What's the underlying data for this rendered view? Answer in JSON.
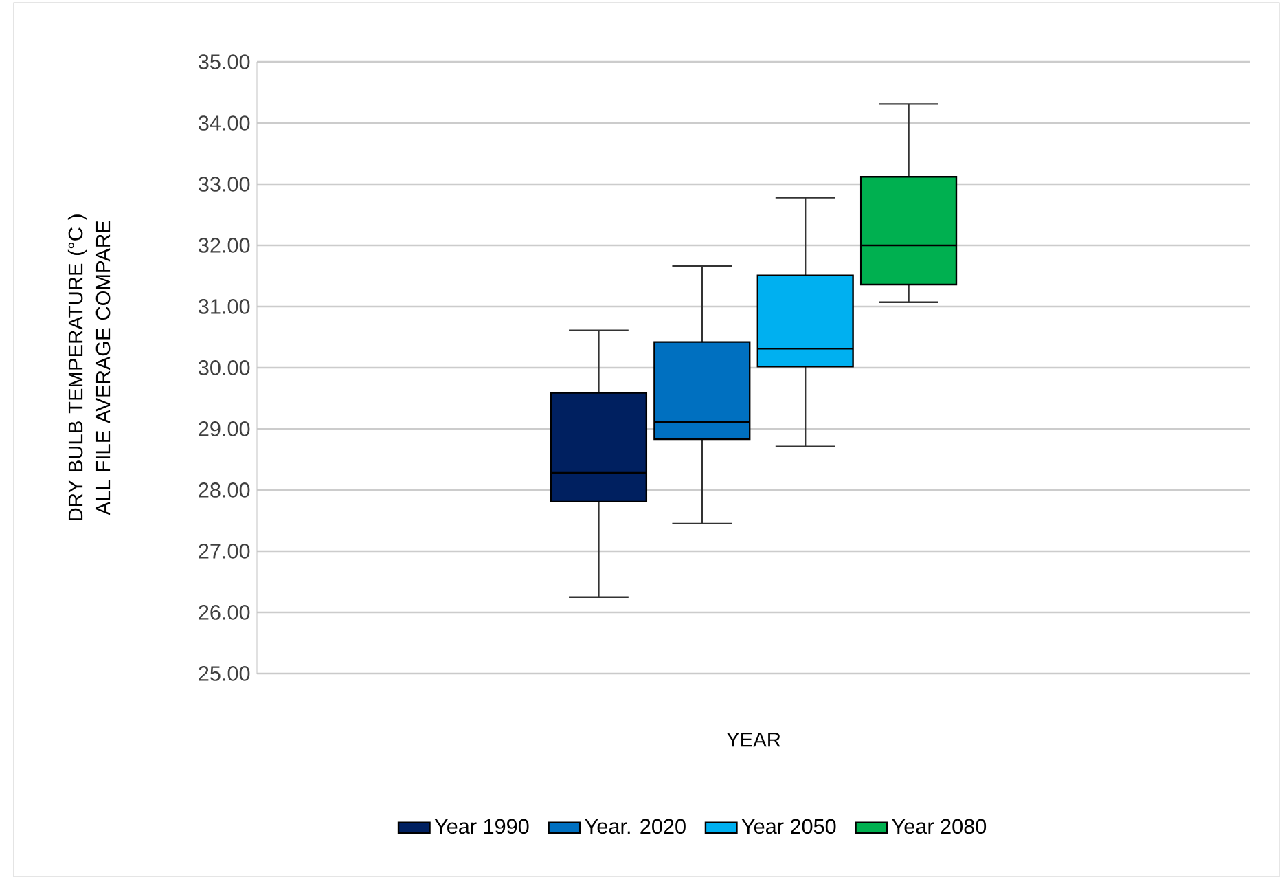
{
  "chart_data": {
    "type": "box",
    "xlabel": "YEAR",
    "ylabel": "DRY BULB TEMPERATURE (°C ) ALL FILE AVERAGE COMPARE",
    "categories": [
      null
    ],
    "series": [
      {
        "name": "Year 1990",
        "color": "#002060",
        "boxes": [
          {
            "low": 26.25,
            "q1": 27.81,
            "median": 28.28,
            "q3": 29.59,
            "high": 30.61
          }
        ]
      },
      {
        "name": "Year. 2020",
        "color": "#0070c0",
        "boxes": [
          {
            "low": 27.45,
            "q1": 28.83,
            "median": 29.11,
            "q3": 30.42,
            "high": 31.66
          }
        ]
      },
      {
        "name": "Year 2050",
        "color": "#00b0f0",
        "boxes": [
          {
            "low": 28.71,
            "q1": 30.02,
            "median": 30.31,
            "q3": 31.51,
            "high": 32.78
          }
        ]
      },
      {
        "name": "Year 2080",
        "color": "#00b050",
        "boxes": [
          {
            "low": 31.07,
            "q1": 31.36,
            "median": 32.0,
            "q3": 33.12,
            "high": 34.31
          }
        ]
      }
    ],
    "ylim": [
      25,
      35
    ],
    "yticks": [
      {
        "value": 25,
        "label": "25.00"
      },
      {
        "value": 26,
        "label": "26.00"
      },
      {
        "value": 27,
        "label": "27.00"
      },
      {
        "value": 28,
        "label": "28.00"
      },
      {
        "value": 29,
        "label": "29.00"
      },
      {
        "value": 30,
        "label": "30.00"
      },
      {
        "value": 31,
        "label": "31.00"
      },
      {
        "value": 32,
        "label": "32.00"
      },
      {
        "value": 33,
        "label": "33.00"
      },
      {
        "value": 34,
        "label": "34.00"
      },
      {
        "value": 35,
        "label": "35.00"
      }
    ],
    "grid": "y",
    "legend": "bottom"
  }
}
